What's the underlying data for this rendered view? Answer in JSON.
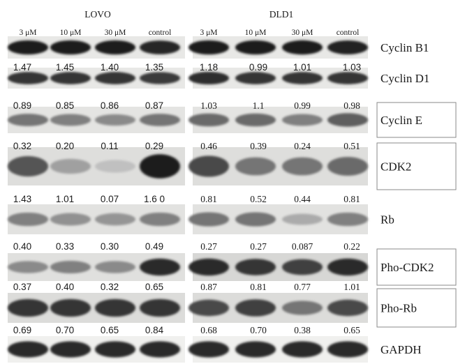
{
  "figure": {
    "groups": [
      {
        "name": "LOVO",
        "lanes": [
          "3 μM",
          "10 μM",
          "30 μM",
          "control"
        ]
      },
      {
        "name": "DLD1",
        "lanes": [
          "3 μM",
          "10 μM",
          "30 μM",
          "control"
        ]
      }
    ],
    "rows": [
      {
        "protein": "Cyclin B1",
        "boxed": false,
        "values_above": null,
        "bands": [
          [
            0.95,
            0.95,
            0.95,
            0.92
          ],
          [
            0.95,
            0.95,
            0.97,
            0.93
          ]
        ]
      },
      {
        "protein": "Cyclin D1",
        "boxed": false,
        "values_above": [
          [
            "1.47",
            "1.45",
            "1.40",
            "1.35"
          ],
          [
            "1.18",
            "0.99",
            "1.01",
            "1.03"
          ]
        ],
        "bands": [
          [
            0.85,
            0.85,
            0.85,
            0.82
          ],
          [
            0.88,
            0.85,
            0.85,
            0.85
          ]
        ]
      },
      {
        "protein": "Cyclin E",
        "boxed": true,
        "values_above": [
          [
            "0.89",
            "0.85",
            "0.86",
            "0.87"
          ],
          [
            "1.03",
            "1.1",
            "0.99",
            "0.98"
          ]
        ],
        "bands": [
          [
            0.55,
            0.5,
            0.45,
            0.55
          ],
          [
            0.6,
            0.6,
            0.5,
            0.65
          ]
        ]
      },
      {
        "protein": "CDK2",
        "boxed": true,
        "values_above": [
          [
            "0.32",
            "0.20",
            "0.11",
            "0.29"
          ],
          [
            "0.46",
            "0.39",
            "0.24",
            "0.51"
          ]
        ],
        "bands": [
          [
            0.7,
            0.35,
            0.2,
            0.95
          ],
          [
            0.75,
            0.55,
            0.55,
            0.6
          ]
        ]
      },
      {
        "protein": "Rb",
        "boxed": false,
        "values_above": [
          [
            "1.43",
            "1.01",
            "0.07",
            "1.6 0"
          ],
          [
            "0.81",
            "0.52",
            "0.44",
            "0.81"
          ]
        ],
        "bands": [
          [
            0.5,
            0.42,
            0.4,
            0.5
          ],
          [
            0.55,
            0.55,
            0.3,
            0.5
          ]
        ]
      },
      {
        "protein": "Pho-CDK2",
        "boxed": true,
        "values_above": [
          [
            "0.40",
            "0.33",
            "0.30",
            "0.49"
          ],
          [
            "0.27",
            "0.27",
            "0.087",
            "0.22"
          ]
        ],
        "bands": [
          [
            0.45,
            0.5,
            0.45,
            0.9
          ],
          [
            0.9,
            0.85,
            0.8,
            0.9
          ]
        ]
      },
      {
        "protein": "Pho-Rb",
        "boxed": true,
        "values_above": [
          [
            "0.37",
            "0.40",
            "0.32",
            "0.65"
          ],
          [
            "0.87",
            "0.81",
            "0.77",
            "1.01"
          ]
        ],
        "bands": [
          [
            0.85,
            0.85,
            0.85,
            0.85
          ],
          [
            0.75,
            0.8,
            0.55,
            0.75
          ]
        ]
      },
      {
        "protein": "GAPDH",
        "boxed": false,
        "values_above": [
          [
            "0.69",
            "0.70",
            "0.65",
            "0.84"
          ],
          [
            "0.68",
            "0.70",
            "0.38",
            "0.65"
          ]
        ],
        "bands": [
          [
            0.9,
            0.9,
            0.9,
            0.9
          ],
          [
            0.9,
            0.9,
            0.9,
            0.9
          ]
        ]
      }
    ]
  }
}
